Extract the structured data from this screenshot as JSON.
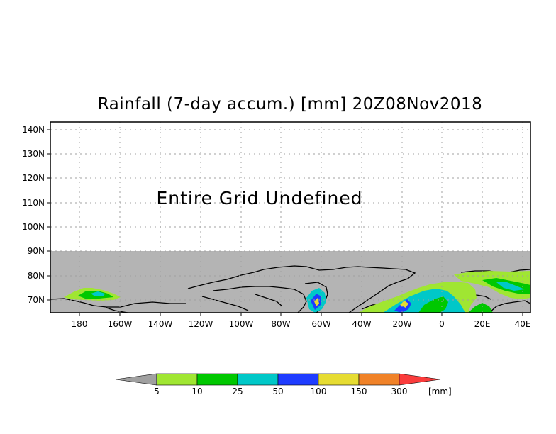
{
  "map": {
    "title": "Rainfall (7-day accum.) [mm] 20Z08Nov2018",
    "message": "Entire Grid Undefined",
    "lat_labels": [
      "140N",
      "130N",
      "120N",
      "110N",
      "100N",
      "90N",
      "80N",
      "70N"
    ],
    "lon_labels": [
      "180",
      "160W",
      "140W",
      "120W",
      "100W",
      "80W",
      "60W",
      "40W",
      "20W",
      "0",
      "20E",
      "40E"
    ],
    "undefined_color": "#b4b4b4",
    "land_outline_color": "#000000"
  },
  "colorbar": {
    "unit_label": "[mm]",
    "thresholds": [
      "5",
      "10",
      "25",
      "50",
      "100",
      "150",
      "300"
    ],
    "colors": [
      "#a0e632",
      "#00c800",
      "#00c8c8",
      "#1e3cff",
      "#e6dc32",
      "#f08228",
      "#fa3c3c"
    ],
    "below_color": "#a0a0a0"
  }
}
